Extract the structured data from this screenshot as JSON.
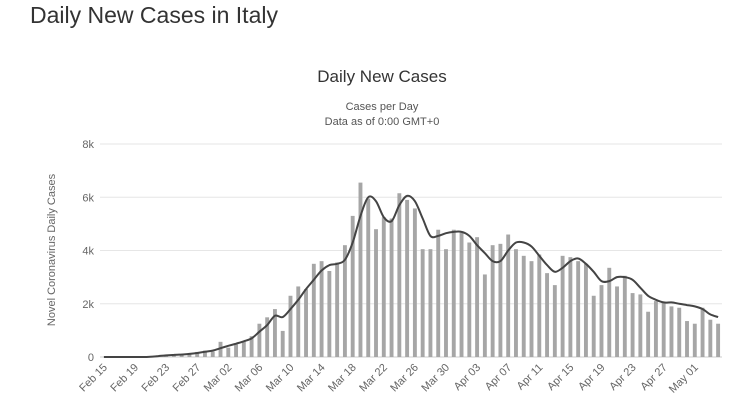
{
  "page_title": "Daily New Cases in Italy",
  "chart_data": {
    "type": "bar",
    "title": "Daily New Cases",
    "subtitle_lines": [
      "Cases per Day",
      "Data as of 0:00 GMT+0"
    ],
    "xlabel": "",
    "ylabel": "Novel Coronavirus Daily Cases",
    "ylim": [
      0,
      8000
    ],
    "yticks": [
      0,
      2000,
      4000,
      6000,
      8000
    ],
    "ytick_labels": [
      "0",
      "2k",
      "4k",
      "6k",
      "8k"
    ],
    "grid": true,
    "legend": "none",
    "colors": {
      "bar": "#a6a6a6",
      "line": "#444444",
      "grid": "#e6e6e6"
    },
    "categories": [
      "Feb 15",
      "Feb 16",
      "Feb 17",
      "Feb 18",
      "Feb 19",
      "Feb 20",
      "Feb 21",
      "Feb 22",
      "Feb 23",
      "Feb 24",
      "Feb 25",
      "Feb 26",
      "Feb 27",
      "Feb 28",
      "Feb 29",
      "Mar 01",
      "Mar 02",
      "Mar 03",
      "Mar 04",
      "Mar 05",
      "Mar 06",
      "Mar 07",
      "Mar 08",
      "Mar 09",
      "Mar 10",
      "Mar 11",
      "Mar 12",
      "Mar 13",
      "Mar 14",
      "Mar 15",
      "Mar 16",
      "Mar 17",
      "Mar 18",
      "Mar 19",
      "Mar 20",
      "Mar 21",
      "Mar 22",
      "Mar 23",
      "Mar 24",
      "Mar 25",
      "Mar 26",
      "Mar 27",
      "Mar 28",
      "Mar 29",
      "Mar 30",
      "Mar 31",
      "Apr 01",
      "Apr 02",
      "Apr 03",
      "Apr 04",
      "Apr 05",
      "Apr 06",
      "Apr 07",
      "Apr 08",
      "Apr 09",
      "Apr 10",
      "Apr 11",
      "Apr 12",
      "Apr 13",
      "Apr 14",
      "Apr 15",
      "Apr 16",
      "Apr 17",
      "Apr 18",
      "Apr 19",
      "Apr 20",
      "Apr 21",
      "Apr 22",
      "Apr 23",
      "Apr 24",
      "Apr 25",
      "Apr 26",
      "Apr 27",
      "Apr 28",
      "Apr 29",
      "Apr 30",
      "May 01",
      "May 02",
      "May 03",
      "May 04"
    ],
    "x_tick_labels": [
      "Feb 15",
      "Feb 19",
      "Feb 23",
      "Feb 27",
      "Mar 02",
      "Mar 06",
      "Mar 10",
      "Mar 14",
      "Mar 18",
      "Mar 22",
      "Mar 26",
      "Mar 30",
      "Apr 03",
      "Apr 07",
      "Apr 11",
      "Apr 15",
      "Apr 19",
      "Apr 23",
      "Apr 27",
      "May 01"
    ],
    "series": [
      {
        "type": "bar",
        "values": [
          0,
          0,
          0,
          0,
          0,
          0,
          17,
          60,
          80,
          100,
          90,
          120,
          190,
          240,
          200,
          570,
          350,
          470,
          590,
          780,
          1250,
          1490,
          1800,
          980,
          2300,
          2650,
          2550,
          3500,
          3600,
          3230,
          3550,
          4200,
          5300,
          6550,
          5950,
          4800,
          5250,
          5200,
          6150,
          5900,
          5580,
          4050,
          4050,
          4780,
          4050,
          4780,
          4670,
          4300,
          4500,
          3100,
          4200,
          4250,
          4600,
          4050,
          3800,
          3600,
          3850,
          3150,
          2700,
          3800,
          3750,
          3600,
          3500,
          2300,
          2700,
          3350,
          2650,
          3050,
          2400,
          2350,
          1700,
          2100,
          2050,
          1900,
          1850,
          1350,
          1250,
          1850,
          1400,
          1250
        ]
      },
      {
        "type": "line",
        "values": [
          0,
          0,
          0,
          0,
          0,
          0,
          10,
          35,
          60,
          80,
          95,
          115,
          150,
          200,
          240,
          330,
          420,
          500,
          590,
          700,
          950,
          1200,
          1550,
          1500,
          1800,
          2150,
          2550,
          2900,
          3250,
          3450,
          3500,
          3650,
          4300,
          5300,
          6000,
          5850,
          5250,
          5100,
          5700,
          6050,
          5850,
          5200,
          4550,
          4550,
          4650,
          4700,
          4700,
          4550,
          4200,
          3900,
          3600,
          3600,
          4000,
          4300,
          4300,
          4150,
          3800,
          3450,
          3200,
          3350,
          3600,
          3700,
          3500,
          3200,
          2850,
          2850,
          3000,
          3000,
          2900,
          2600,
          2300,
          2150,
          2050,
          2050,
          2000,
          1950,
          1900,
          1800,
          1600,
          1500
        ]
      }
    ]
  }
}
